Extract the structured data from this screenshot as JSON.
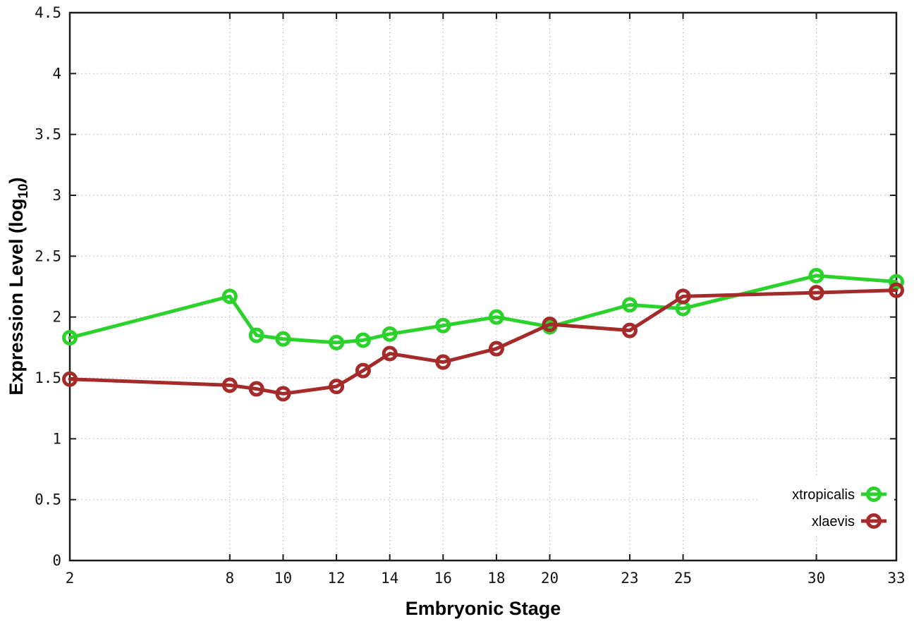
{
  "colors": {
    "background": "#ffffff",
    "axis": "#1c1c1c",
    "grid": "#b8b8b8",
    "tick_label": "#141414",
    "xtropicalis": "#2BD22B",
    "xlaevis": "#A52A2A"
  },
  "chart_data": {
    "type": "line",
    "title": "",
    "xlabel": "Embryonic Stage",
    "ylabel": "Expression Level (log10)",
    "ylabel_parts": {
      "prefix": "Expression Level (log",
      "sub": "10",
      "suffix": ")"
    },
    "x": [
      2,
      8,
      9,
      10,
      12,
      13,
      14,
      16,
      18,
      20,
      23,
      25,
      30,
      33
    ],
    "x_tick_labels": [
      2,
      8,
      10,
      12,
      14,
      16,
      18,
      20,
      23,
      25,
      30,
      33
    ],
    "y_ticks": [
      0,
      0.5,
      1,
      1.5,
      2,
      2.5,
      3,
      3.5,
      4,
      4.5
    ],
    "xlim": [
      2,
      33
    ],
    "ylim": [
      0,
      4.5
    ],
    "grid": true,
    "legend_position": "inside-bottom-right",
    "marker": "open-circle",
    "series": [
      {
        "name": "xtropicalis",
        "color": "#2BD22B",
        "values": [
          1.83,
          2.17,
          1.85,
          1.82,
          1.79,
          1.81,
          1.86,
          1.93,
          2.0,
          1.92,
          2.1,
          2.07,
          2.34,
          2.29
        ]
      },
      {
        "name": "xlaevis",
        "color": "#A52A2A",
        "values": [
          1.49,
          1.44,
          1.41,
          1.37,
          1.43,
          1.56,
          1.7,
          1.63,
          1.74,
          1.94,
          1.89,
          2.17,
          2.2,
          2.22
        ]
      }
    ]
  }
}
